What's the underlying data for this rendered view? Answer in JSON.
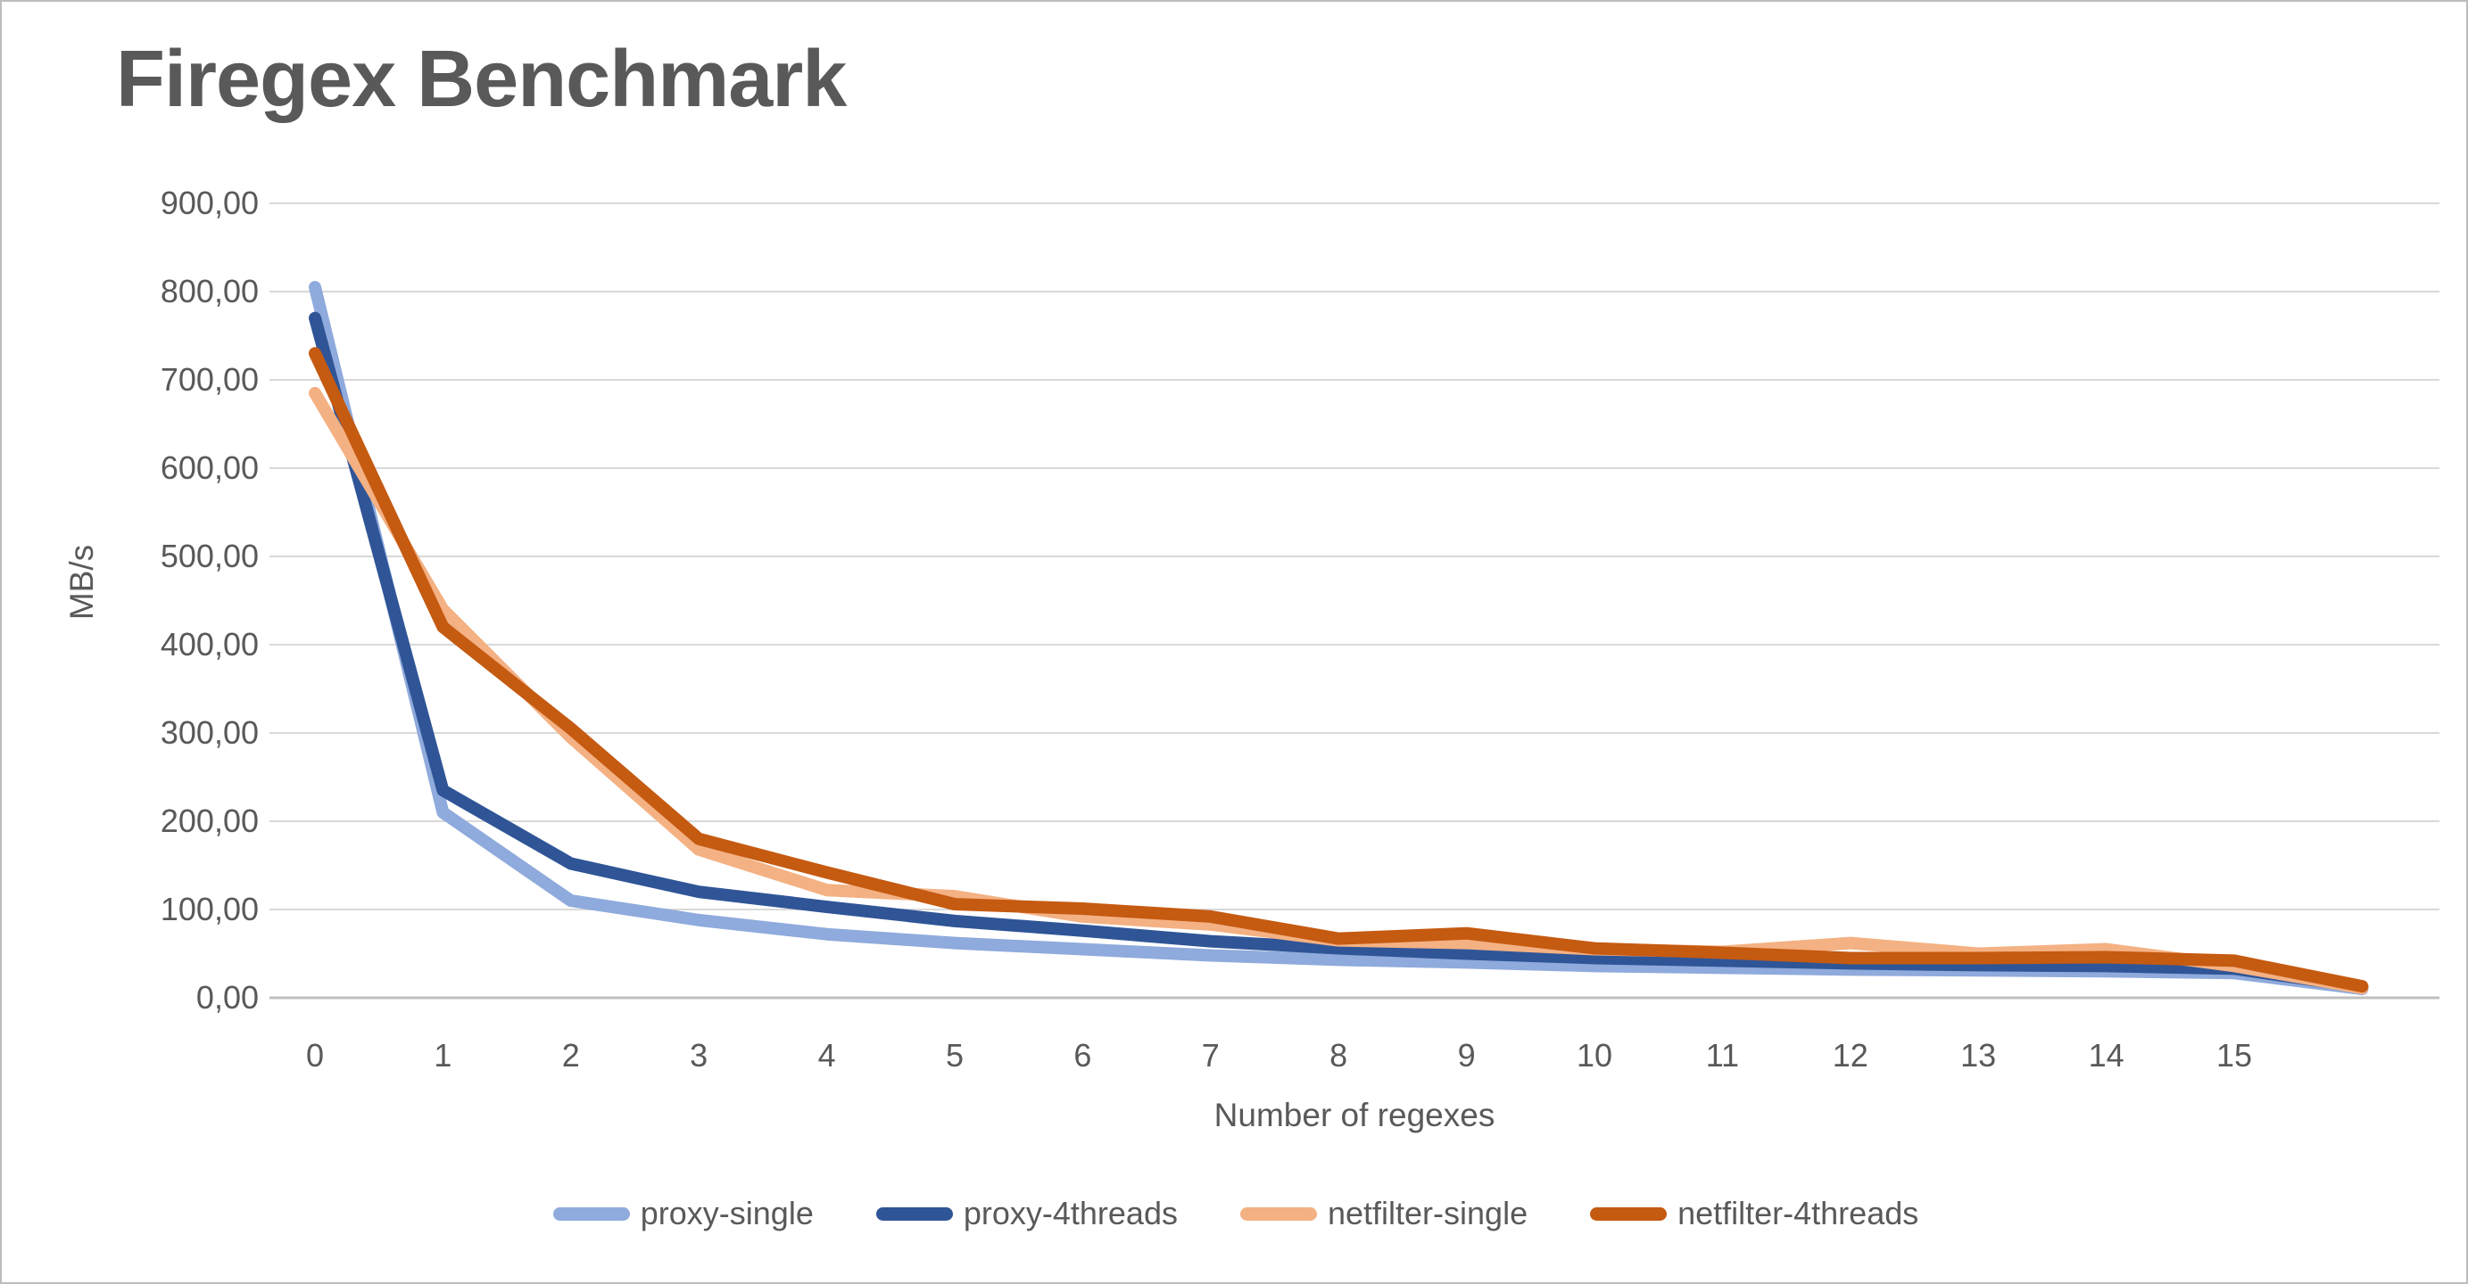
{
  "chart_data": {
    "type": "line",
    "title": "Firegex Benchmark",
    "xlabel": "Number of regexes",
    "ylabel": "MB/s",
    "grid": true,
    "legend_position": "bottom",
    "ylim": [
      0,
      900
    ],
    "y_tick_step": 100,
    "y_tick_labels": [
      "0,00",
      "100,00",
      "200,00",
      "300,00",
      "400,00",
      "500,00",
      "600,00",
      "700,00",
      "800,00",
      "900,00"
    ],
    "x_tick_labels": [
      "0",
      "1",
      "2",
      "3",
      "4",
      "5",
      "6",
      "7",
      "8",
      "9",
      "10",
      "11",
      "12",
      "13",
      "14",
      "15"
    ],
    "x": [
      0,
      1,
      2,
      3,
      4,
      5,
      6,
      7,
      8,
      9,
      10,
      11,
      12,
      13,
      14,
      15,
      16
    ],
    "series": [
      {
        "name": "proxy-single",
        "color": "#8FAADC",
        "values": [
          805,
          210,
          110,
          88,
          72,
          62,
          55,
          48,
          43,
          40,
          36,
          34,
          32,
          31,
          30,
          28,
          10
        ]
      },
      {
        "name": "proxy-4threads",
        "color": "#2F5597",
        "values": [
          770,
          235,
          152,
          120,
          103,
          87,
          76,
          64,
          56,
          50,
          45,
          42,
          39,
          37,
          36,
          33,
          12
        ]
      },
      {
        "name": "netfilter-single",
        "color": "#F4B183",
        "values": [
          685,
          440,
          295,
          168,
          122,
          115,
          92,
          83,
          65,
          62,
          55,
          52,
          62,
          50,
          55,
          36,
          11
        ]
      },
      {
        "name": "netfilter-4threads",
        "color": "#C55A11",
        "values": [
          730,
          420,
          305,
          180,
          142,
          106,
          101,
          92,
          67,
          73,
          56,
          51,
          45,
          45,
          46,
          42,
          13
        ]
      }
    ],
    "style_colors": {
      "title_text": "#595959",
      "axis_text": "#595959",
      "gridline": "#D9D9D9",
      "axis_line": "#BFBFBF",
      "background": "#FFFFFF"
    }
  }
}
